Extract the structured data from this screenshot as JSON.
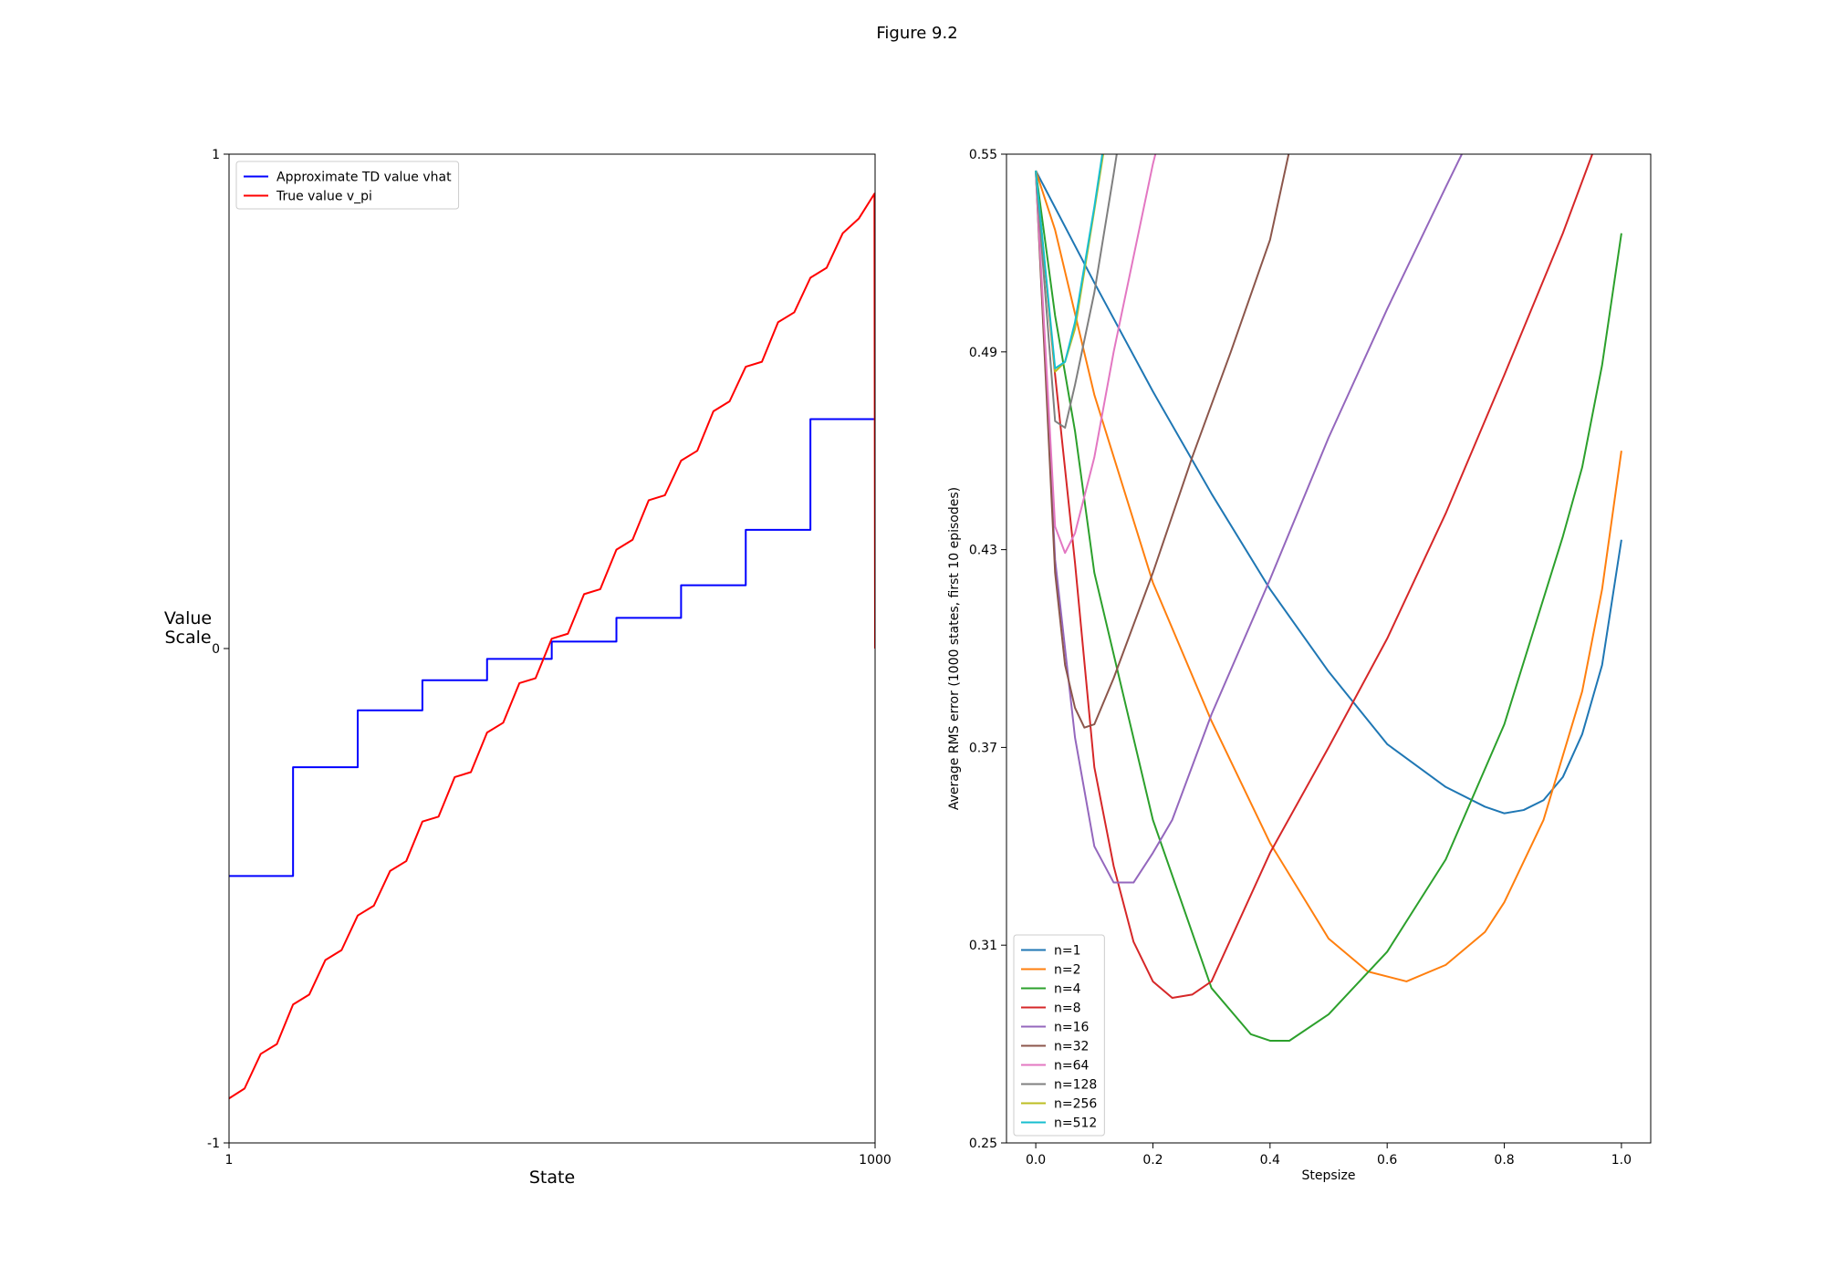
{
  "title": "Figure 9.2",
  "chart_data": [
    {
      "type": "line",
      "xlabel": "State",
      "ylabel": "Value\nScale",
      "xlim": [
        1,
        1000
      ],
      "ylim": [
        -1,
        1
      ],
      "xticks": [
        1,
        1000
      ],
      "yticks": [
        -1,
        0,
        1
      ],
      "legend": "upper left",
      "grid": false,
      "series": [
        {
          "name": "Approximate TD value vhat",
          "color": "#0000ff",
          "x": [
            1,
            100,
            100,
            200,
            200,
            300,
            300,
            400,
            400,
            500,
            500,
            600,
            600,
            700,
            700,
            800,
            800,
            900,
            900,
            1000,
            1000
          ],
          "values": [
            -0.46,
            -0.46,
            -0.24,
            -0.24,
            -0.125,
            -0.125,
            -0.064,
            -0.064,
            -0.021,
            -0.021,
            0.014,
            0.014,
            0.062,
            0.062,
            0.128,
            0.128,
            0.24,
            0.24,
            0.464,
            0.464,
            0
          ]
        },
        {
          "name": "True value v_pi",
          "color": "#ff0000",
          "x": [
            1,
            25,
            50,
            75,
            100,
            125,
            150,
            175,
            200,
            225,
            250,
            275,
            300,
            325,
            350,
            375,
            400,
            425,
            450,
            475,
            500,
            525,
            550,
            575,
            600,
            625,
            650,
            675,
            700,
            725,
            750,
            775,
            800,
            825,
            850,
            875,
            900,
            925,
            950,
            975,
            999,
            1000
          ],
          "values": [
            -0.91,
            -0.89,
            -0.82,
            -0.8,
            -0.72,
            -0.7,
            -0.63,
            -0.61,
            -0.54,
            -0.52,
            -0.45,
            -0.43,
            -0.35,
            -0.34,
            -0.26,
            -0.25,
            -0.17,
            -0.15,
            -0.07,
            -0.06,
            0.02,
            0.03,
            0.11,
            0.12,
            0.2,
            0.22,
            0.3,
            0.31,
            0.38,
            0.4,
            0.48,
            0.5,
            0.57,
            0.58,
            0.66,
            0.68,
            0.75,
            0.77,
            0.84,
            0.87,
            0.92,
            0
          ]
        }
      ]
    },
    {
      "type": "line",
      "xlabel": "Stepsize",
      "ylabel": "Average RMS error (1000 states, first 10 episodes)",
      "xlim": [
        -0.05,
        1.05
      ],
      "ylim": [
        0.25,
        0.55
      ],
      "xticks": [
        {
          "value": 0,
          "label": "0.0"
        },
        0.2,
        0.4,
        0.6,
        0.8,
        {
          "value": 1,
          "label": "1.0"
        }
      ],
      "yticks": [
        0.25,
        0.31,
        0.37,
        0.43,
        0.49,
        0.55
      ],
      "legend": "lower left",
      "grid": false,
      "series": [
        {
          "name": "n=1",
          "color": "#1f77b4",
          "x": [
            0,
            0.1,
            0.2,
            0.3,
            0.4,
            0.5,
            0.6,
            0.7,
            0.767,
            0.8,
            0.833,
            0.867,
            0.9,
            0.933,
            0.967,
            1.0
          ],
          "values": [
            0.545,
            0.511,
            0.478,
            0.447,
            0.418,
            0.393,
            0.371,
            0.358,
            0.352,
            0.35,
            0.351,
            0.354,
            0.361,
            0.374,
            0.395,
            0.433
          ]
        },
        {
          "name": "n=2",
          "color": "#ff7f0e",
          "x": [
            0,
            0.033,
            0.1,
            0.2,
            0.3,
            0.4,
            0.5,
            0.567,
            0.633,
            0.7,
            0.767,
            0.8,
            0.867,
            0.933,
            0.967,
            1.0
          ],
          "values": [
            0.545,
            0.527,
            0.477,
            0.42,
            0.378,
            0.341,
            0.312,
            0.302,
            0.299,
            0.304,
            0.314,
            0.323,
            0.348,
            0.387,
            0.418,
            0.46
          ]
        },
        {
          "name": "n=4",
          "color": "#2ca02c",
          "x": [
            0,
            0.033,
            0.067,
            0.1,
            0.2,
            0.3,
            0.367,
            0.4,
            0.433,
            0.5,
            0.6,
            0.7,
            0.8,
            0.9,
            0.933,
            0.967,
            1.0
          ],
          "values": [
            0.545,
            0.501,
            0.466,
            0.423,
            0.348,
            0.297,
            0.283,
            0.281,
            0.281,
            0.289,
            0.308,
            0.336,
            0.377,
            0.434,
            0.455,
            0.486,
            0.526
          ]
        },
        {
          "name": "n=8",
          "color": "#d62728",
          "x": [
            0,
            0.033,
            0.067,
            0.1,
            0.133,
            0.167,
            0.2,
            0.233,
            0.267,
            0.3,
            0.4,
            0.5,
            0.6,
            0.7,
            0.8,
            0.9,
            0.967
          ],
          "values": [
            0.545,
            0.483,
            0.426,
            0.364,
            0.334,
            0.311,
            0.299,
            0.294,
            0.295,
            0.299,
            0.338,
            0.37,
            0.403,
            0.441,
            0.483,
            0.526,
            0.558
          ]
        },
        {
          "name": "n=16",
          "color": "#9467bd",
          "x": [
            0,
            0.033,
            0.067,
            0.1,
            0.133,
            0.167,
            0.2,
            0.233,
            0.3,
            0.4,
            0.5,
            0.6,
            0.7,
            0.733
          ],
          "values": [
            0.545,
            0.427,
            0.373,
            0.34,
            0.329,
            0.329,
            0.338,
            0.348,
            0.38,
            0.421,
            0.464,
            0.503,
            0.54,
            0.552
          ]
        },
        {
          "name": "n=32",
          "color": "#8c564b",
          "x": [
            0,
            0.033,
            0.05,
            0.067,
            0.083,
            0.1,
            0.133,
            0.2,
            0.267,
            0.333,
            0.4,
            0.433
          ],
          "values": [
            0.545,
            0.423,
            0.395,
            0.382,
            0.376,
            0.377,
            0.391,
            0.423,
            0.458,
            0.49,
            0.524,
            0.551
          ]
        },
        {
          "name": "n=64",
          "color": "#e377c2",
          "x": [
            0,
            0.033,
            0.05,
            0.067,
            0.1,
            0.133,
            0.2,
            0.21
          ],
          "values": [
            0.545,
            0.437,
            0.429,
            0.435,
            0.458,
            0.49,
            0.547,
            0.554
          ]
        },
        {
          "name": "n=128",
          "color": "#7f7f7f",
          "x": [
            0,
            0.033,
            0.05,
            0.067,
            0.1,
            0.133,
            0.14
          ],
          "values": [
            0.545,
            0.469,
            0.467,
            0.48,
            0.508,
            0.544,
            0.552
          ]
        },
        {
          "name": "n=256",
          "color": "#bcbd22",
          "x": [
            0,
            0.033,
            0.05,
            0.067,
            0.1,
            0.117
          ],
          "values": [
            0.545,
            0.484,
            0.487,
            0.497,
            0.533,
            0.552
          ]
        },
        {
          "name": "n=512",
          "color": "#17becf",
          "x": [
            0,
            0.033,
            0.05,
            0.067,
            0.1,
            0.117
          ],
          "values": [
            0.545,
            0.485,
            0.487,
            0.499,
            0.534,
            0.554
          ]
        }
      ]
    }
  ]
}
